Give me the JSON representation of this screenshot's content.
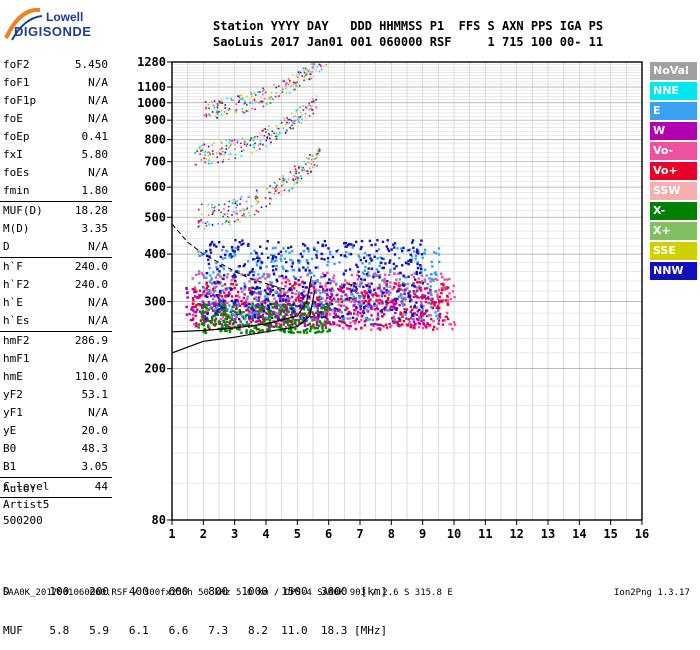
{
  "logo": {
    "line1": "Lowell",
    "line2": "DIGISONDE"
  },
  "header": {
    "line1": "Station YYYY DAY   DDD HHMMSS P1  FFS S AXN PPS IGA PS",
    "line2": "SaoLuis 2017 Jan01 001 060000 RSF     1 715 100 00- 11"
  },
  "params": [
    {
      "name": "foF2",
      "value": "5.450"
    },
    {
      "name": "foF1",
      "value": "N/A"
    },
    {
      "name": "foF1p",
      "value": "N/A"
    },
    {
      "name": "foE",
      "value": "N/A"
    },
    {
      "name": "foEp",
      "value": "0.41"
    },
    {
      "name": "fxI",
      "value": "5.80"
    },
    {
      "name": "foEs",
      "value": "N/A"
    },
    {
      "name": "fmin",
      "value": "1.80"
    },
    {
      "sep": true
    },
    {
      "name": "MUF(D)",
      "value": "18.28"
    },
    {
      "name": "M(D)",
      "value": "3.35"
    },
    {
      "name": "D",
      "value": "N/A"
    },
    {
      "sep": true
    },
    {
      "name": "h`F",
      "value": "240.0"
    },
    {
      "name": "h`F2",
      "value": "240.0"
    },
    {
      "name": "h`E",
      "value": "N/A"
    },
    {
      "name": "h`Es",
      "value": "N/A"
    },
    {
      "sep": true
    },
    {
      "name": "hmF2",
      "value": "286.9"
    },
    {
      "name": "hmF1",
      "value": "N/A"
    },
    {
      "name": "hmE",
      "value": "110.0"
    },
    {
      "name": "yF2",
      "value": "53.1"
    },
    {
      "name": "yF1",
      "value": "N/A"
    },
    {
      "name": "yE",
      "value": "20.0"
    },
    {
      "name": "B0",
      "value": "48.3"
    },
    {
      "name": "B1",
      "value": "3.05"
    },
    {
      "sep": true
    },
    {
      "name": "C-level",
      "value": "44"
    },
    {
      "sep": true
    }
  ],
  "autoscale": [
    "Auto:",
    "Artist5",
    "500200"
  ],
  "legend": [
    {
      "label": "NoVal",
      "color": "#a0a0a0"
    },
    {
      "label": "NNE",
      "color": "#00e6f0"
    },
    {
      "label": "E",
      "color": "#3aa0f0"
    },
    {
      "label": "W",
      "color": "#b000b0"
    },
    {
      "label": "Vo-",
      "color": "#f050a0"
    },
    {
      "label": "Vo+",
      "color": "#e8002a"
    },
    {
      "label": "SSW",
      "color": "#f4b0b0"
    },
    {
      "label": "X-",
      "color": "#008000"
    },
    {
      "label": "X+",
      "color": "#80c060"
    },
    {
      "label": "SSE",
      "color": "#d0d000"
    },
    {
      "label": "NNW",
      "color": "#1010c0"
    }
  ],
  "chart_data": {
    "type": "scatter",
    "xlabel": "",
    "ylabel": "",
    "xlim": [
      1,
      16
    ],
    "ylim": [
      80,
      1280
    ],
    "y_scale": "log",
    "xticks": [
      1,
      2,
      3,
      4,
      5,
      6,
      7,
      8,
      9,
      10,
      11,
      12,
      13,
      14,
      15,
      16
    ],
    "yticks": [
      80,
      200,
      300,
      400,
      500,
      600,
      700,
      800,
      900,
      1000,
      1100,
      1280
    ],
    "grid": true,
    "series": [
      {
        "name": "Vo-",
        "color": "#f050a0",
        "region": {
          "x": [
            1.6,
            10.0
          ],
          "y": [
            255,
            360
          ]
        }
      },
      {
        "name": "Vo+",
        "color": "#e8002a",
        "region": {
          "x": [
            1.6,
            9.8
          ],
          "y": [
            255,
            340
          ]
        }
      },
      {
        "name": "X-",
        "color": "#008000",
        "region": {
          "x": [
            1.8,
            6.0
          ],
          "y": [
            250,
            300
          ]
        }
      },
      {
        "name": "W",
        "color": "#b000b0",
        "region": {
          "x": [
            1.4,
            9.5
          ],
          "y": [
            260,
            330
          ]
        }
      },
      {
        "name": "E",
        "color": "#3aa0f0",
        "region": {
          "x": [
            1.8,
            9.5
          ],
          "y": [
            270,
            420
          ]
        }
      },
      {
        "name": "NNW",
        "color": "#1010c0",
        "region": {
          "x": [
            2.0,
            9.0
          ],
          "y": [
            270,
            440
          ]
        }
      }
    ],
    "echo_traces": [
      {
        "name": "2-hop",
        "x": [
          1.8,
          5.7
        ],
        "y": [
          490,
          720
        ]
      },
      {
        "name": "3-hop",
        "x": [
          1.7,
          5.7
        ],
        "y": [
          720,
          1000
        ]
      },
      {
        "name": "4-hop",
        "x": [
          2.0,
          5.9
        ],
        "y": [
          950,
          1280
        ]
      }
    ],
    "profile_curve": {
      "x": [
        1.0,
        2.0,
        3.0,
        4.0,
        5.0,
        5.4,
        5.55
      ],
      "y": [
        220,
        236,
        242,
        250,
        258,
        275,
        320
      ]
    },
    "virtual_height_curve": {
      "x": [
        1.0,
        2.0,
        3.0,
        4.0,
        5.0,
        5.3,
        5.45
      ],
      "y": [
        250,
        252,
        256,
        262,
        275,
        300,
        350
      ]
    },
    "dashed_curve": {
      "x": [
        1.0,
        1.5,
        2.0,
        2.5,
        3.0,
        3.5,
        4.0,
        4.5,
        5.0
      ],
      "y": [
        480,
        430,
        400,
        380,
        360,
        345,
        335,
        325,
        320
      ]
    }
  },
  "muf_table": {
    "distance_label": "D",
    "distances": [
      "100",
      "200",
      "400",
      "600",
      "800",
      "1000",
      "1500",
      "3000",
      "[km]"
    ],
    "muf_label": "MUF",
    "mufs": [
      "5.8",
      "5.9",
      "6.1",
      "6.6",
      "7.3",
      "8.2",
      "11.0",
      "18.3",
      "[MHz]"
    ]
  },
  "footer": "SAA0K_2017001060000.RSF / 300fx256h 50 kHz 5.0 km / DPS-4 SAA0K 903 / 2.6 S 315.8 E",
  "version": "Ion2Png 1.3.17"
}
